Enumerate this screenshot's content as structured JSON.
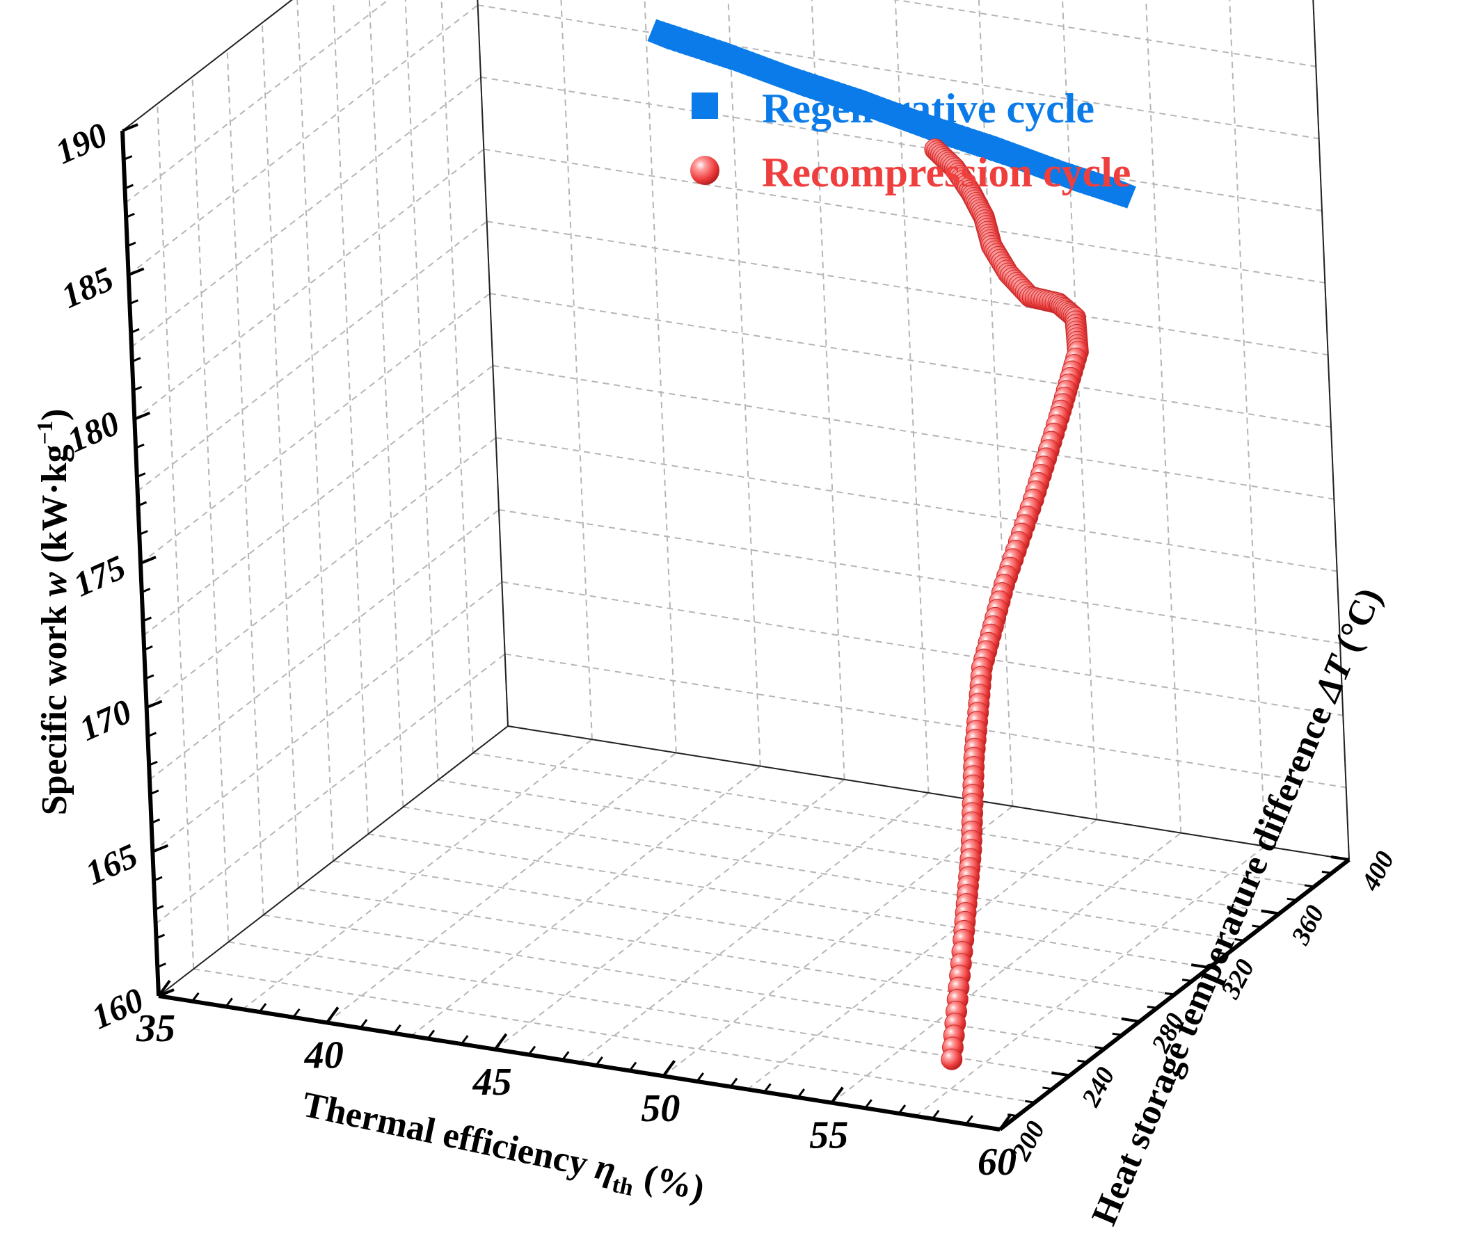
{
  "chart_data": {
    "type": "scatter3d",
    "title": "",
    "axes": {
      "x": {
        "label": "Thermal efficiency ",
        "label_symbol": "η",
        "label_subscript": "th",
        "label_unit": " (%)",
        "range": [
          35,
          60
        ],
        "ticks": [
          35,
          40,
          45,
          50,
          55,
          60
        ]
      },
      "y": {
        "label": "Heat storage temperature difference ",
        "label_symbol": "ΔT",
        "label_unit": " (°C)",
        "unit_sup": "o",
        "range": [
          200,
          400
        ],
        "ticks": [
          200,
          240,
          280,
          320,
          360,
          400
        ]
      },
      "z": {
        "label": "Specific work ",
        "label_symbol": "w",
        "label_unit": " (kW·kg",
        "label_unit_sup": "−1",
        "label_close": ")",
        "range": [
          160,
          190
        ],
        "ticks": [
          160,
          165,
          170,
          175,
          180,
          185,
          190
        ]
      }
    },
    "grid": true,
    "legend": {
      "position": "top-right"
    },
    "series": [
      {
        "name": "Regenerative cycle",
        "color": "#0a7be8",
        "marker": "square",
        "x": [
          40.5,
          42.5,
          44.5,
          46.5,
          48.5,
          50.5,
          52.5,
          54.0
        ],
        "y": [
          400,
          400,
          400,
          400,
          400,
          400,
          400,
          400
        ],
        "z": [
          185.0,
          184.6,
          184.1,
          183.7,
          183.2,
          182.8,
          182.3,
          182.0
        ]
      },
      {
        "name": "Recompression cycle",
        "color": "#ef3e3e",
        "marker": "sphere",
        "x": [
          48.5,
          49.5,
          50.5,
          51.5,
          52.5,
          53.5,
          54.5,
          55.5,
          56.1,
          56.3,
          56.3,
          56.4,
          56.5,
          56.7,
          57.0,
          57.5,
          57.8,
          58.0
        ],
        "y": [
          400,
          392,
          382,
          370,
          355,
          345,
          338,
          335,
          333,
          330,
          318,
          300,
          280,
          262,
          250,
          237,
          225,
          212
        ],
        "z": [
          182.5,
          182.4,
          182.2,
          182.1,
          182.0,
          181.7,
          181.4,
          181.5,
          181.2,
          180.2,
          178.5,
          176.5,
          174.5,
          172.5,
          170.0,
          167.5,
          165.0,
          161.5
        ]
      }
    ]
  }
}
